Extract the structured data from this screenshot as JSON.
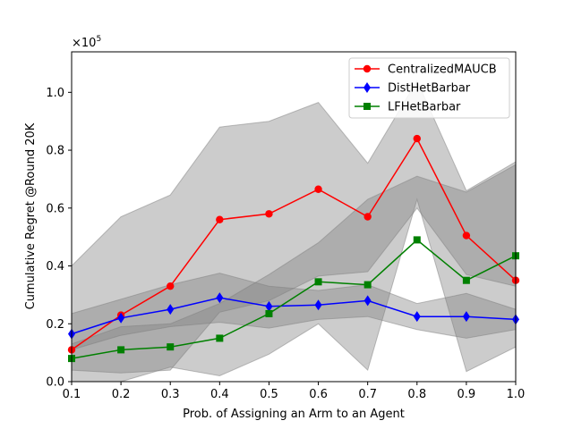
{
  "chart_data": {
    "type": "line",
    "title": "",
    "xlabel": "Prob. of Assigning an Arm to an Agent",
    "ylabel": "Cumulative Regret @Round 20K",
    "offset_label": "×10",
    "offset_exponent": "5",
    "x": [
      0.1,
      0.2,
      0.3,
      0.4,
      0.5,
      0.6,
      0.7,
      0.8,
      0.9,
      1.0
    ],
    "xlim": [
      0.1,
      1.0
    ],
    "ylim": [
      0.0,
      1.14
    ],
    "x_ticks": [
      "0.1",
      "0.2",
      "0.3",
      "0.4",
      "0.5",
      "0.6",
      "0.7",
      "0.8",
      "0.9",
      "1.0"
    ],
    "y_tick_values": [
      0.0,
      0.2,
      0.4,
      0.6,
      0.8,
      1.0
    ],
    "y_ticks": [
      "0.0",
      "0.2",
      "0.4",
      "0.6",
      "0.8",
      "1.0"
    ],
    "grid": false,
    "legend_position": "top-right",
    "series": [
      {
        "name": "CentralizedMAUCB",
        "color": "#ff0000",
        "marker": "circle",
        "values": [
          0.11,
          0.23,
          0.33,
          0.56,
          0.58,
          0.665,
          0.57,
          0.84,
          0.505,
          0.35
        ],
        "band_upper": [
          0.4,
          0.57,
          0.645,
          0.88,
          0.9,
          0.965,
          0.755,
          1.04,
          0.66,
          0.76
        ],
        "band_lower": [
          0.0,
          0.0,
          0.05,
          0.02,
          0.095,
          0.2,
          0.04,
          0.63,
          0.035,
          0.12
        ]
      },
      {
        "name": "DistHetBarbar",
        "color": "#0000ff",
        "marker": "diamond",
        "values": [
          0.165,
          0.22,
          0.25,
          0.29,
          0.26,
          0.265,
          0.28,
          0.225,
          0.225,
          0.215
        ],
        "band_upper": [
          0.235,
          0.285,
          0.335,
          0.375,
          0.33,
          0.315,
          0.335,
          0.27,
          0.305,
          0.25
        ],
        "band_lower": [
          0.11,
          0.16,
          0.19,
          0.205,
          0.185,
          0.215,
          0.225,
          0.18,
          0.15,
          0.18
        ]
      },
      {
        "name": "LFHetBarbar",
        "color": "#008000",
        "marker": "square",
        "values": [
          0.08,
          0.11,
          0.12,
          0.15,
          0.235,
          0.345,
          0.335,
          0.49,
          0.35,
          0.435
        ],
        "band_upper": [
          0.13,
          0.19,
          0.2,
          0.27,
          0.37,
          0.48,
          0.63,
          0.71,
          0.655,
          0.75
        ],
        "band_lower": [
          0.04,
          0.03,
          0.04,
          0.24,
          0.28,
          0.365,
          0.38,
          0.6,
          0.37,
          0.33
        ]
      }
    ]
  }
}
